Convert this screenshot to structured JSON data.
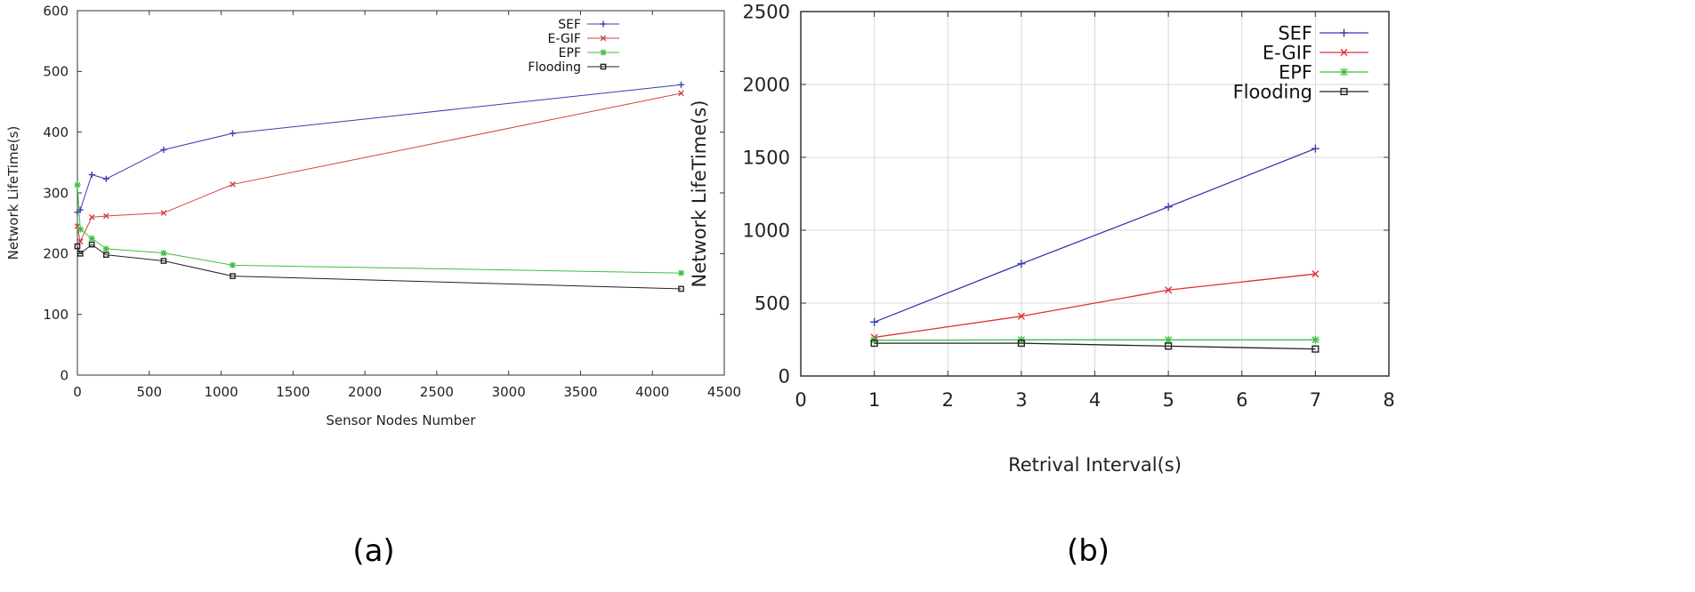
{
  "chart_data": [
    {
      "type": "line",
      "caption": "(a)",
      "xlabel": "Sensor Nodes Number",
      "ylabel": "Network LifeTime(s)",
      "xlim": [
        0,
        4500
      ],
      "ylim": [
        0,
        600
      ],
      "xticks": [
        0,
        500,
        1000,
        1500,
        2000,
        2500,
        3000,
        3500,
        4000,
        4500
      ],
      "yticks": [
        0,
        100,
        200,
        300,
        400,
        500,
        600
      ],
      "grid": false,
      "legend": "top-right",
      "series": [
        {
          "name": "SEF",
          "color": "#3b3bb0",
          "marker": "plus",
          "x": [
            0,
            20,
            100,
            200,
            600,
            1080,
            4200
          ],
          "y": [
            268,
            272,
            330,
            323,
            371,
            398,
            478
          ]
        },
        {
          "name": "E-GIF",
          "color": "#d04040",
          "marker": "cross",
          "x": [
            0,
            20,
            100,
            200,
            600,
            1080,
            4200
          ],
          "y": [
            245,
            220,
            260,
            262,
            267,
            314,
            464
          ]
        },
        {
          "name": "EPF",
          "color": "#3fbf3f",
          "marker": "star",
          "x": [
            0,
            20,
            100,
            200,
            600,
            1080,
            4200
          ],
          "y": [
            313,
            240,
            225,
            208,
            201,
            181,
            168
          ]
        },
        {
          "name": "Flooding",
          "color": "#222222",
          "marker": "square",
          "x": [
            0,
            20,
            100,
            200,
            600,
            1080,
            4200
          ],
          "y": [
            212,
            200,
            215,
            198,
            188,
            163,
            142
          ]
        }
      ]
    },
    {
      "type": "line",
      "caption": "(b)",
      "xlabel": "Retrival Interval(s)",
      "ylabel": "Network LifeTime(s)",
      "xlim": [
        0,
        8
      ],
      "ylim": [
        0,
        2500
      ],
      "xticks": [
        0,
        1,
        2,
        3,
        4,
        5,
        6,
        7,
        8
      ],
      "yticks": [
        0,
        500,
        1000,
        1500,
        2000,
        2500
      ],
      "grid": true,
      "legend": "top-right",
      "series": [
        {
          "name": "SEF",
          "color": "#3b3bb0",
          "marker": "plus",
          "x": [
            1,
            3,
            5,
            7
          ],
          "y": [
            370,
            770,
            1160,
            1560
          ]
        },
        {
          "name": "E-GIF",
          "color": "#e03030",
          "marker": "cross",
          "x": [
            1,
            3,
            5,
            7
          ],
          "y": [
            265,
            410,
            590,
            700
          ]
        },
        {
          "name": "EPF",
          "color": "#3fbf3f",
          "marker": "star",
          "x": [
            1,
            3,
            5,
            7
          ],
          "y": [
            245,
            248,
            248,
            248
          ]
        },
        {
          "name": "Flooding",
          "color": "#222222",
          "marker": "square",
          "x": [
            1,
            3,
            5,
            7
          ],
          "y": [
            225,
            225,
            205,
            185
          ]
        }
      ]
    }
  ]
}
